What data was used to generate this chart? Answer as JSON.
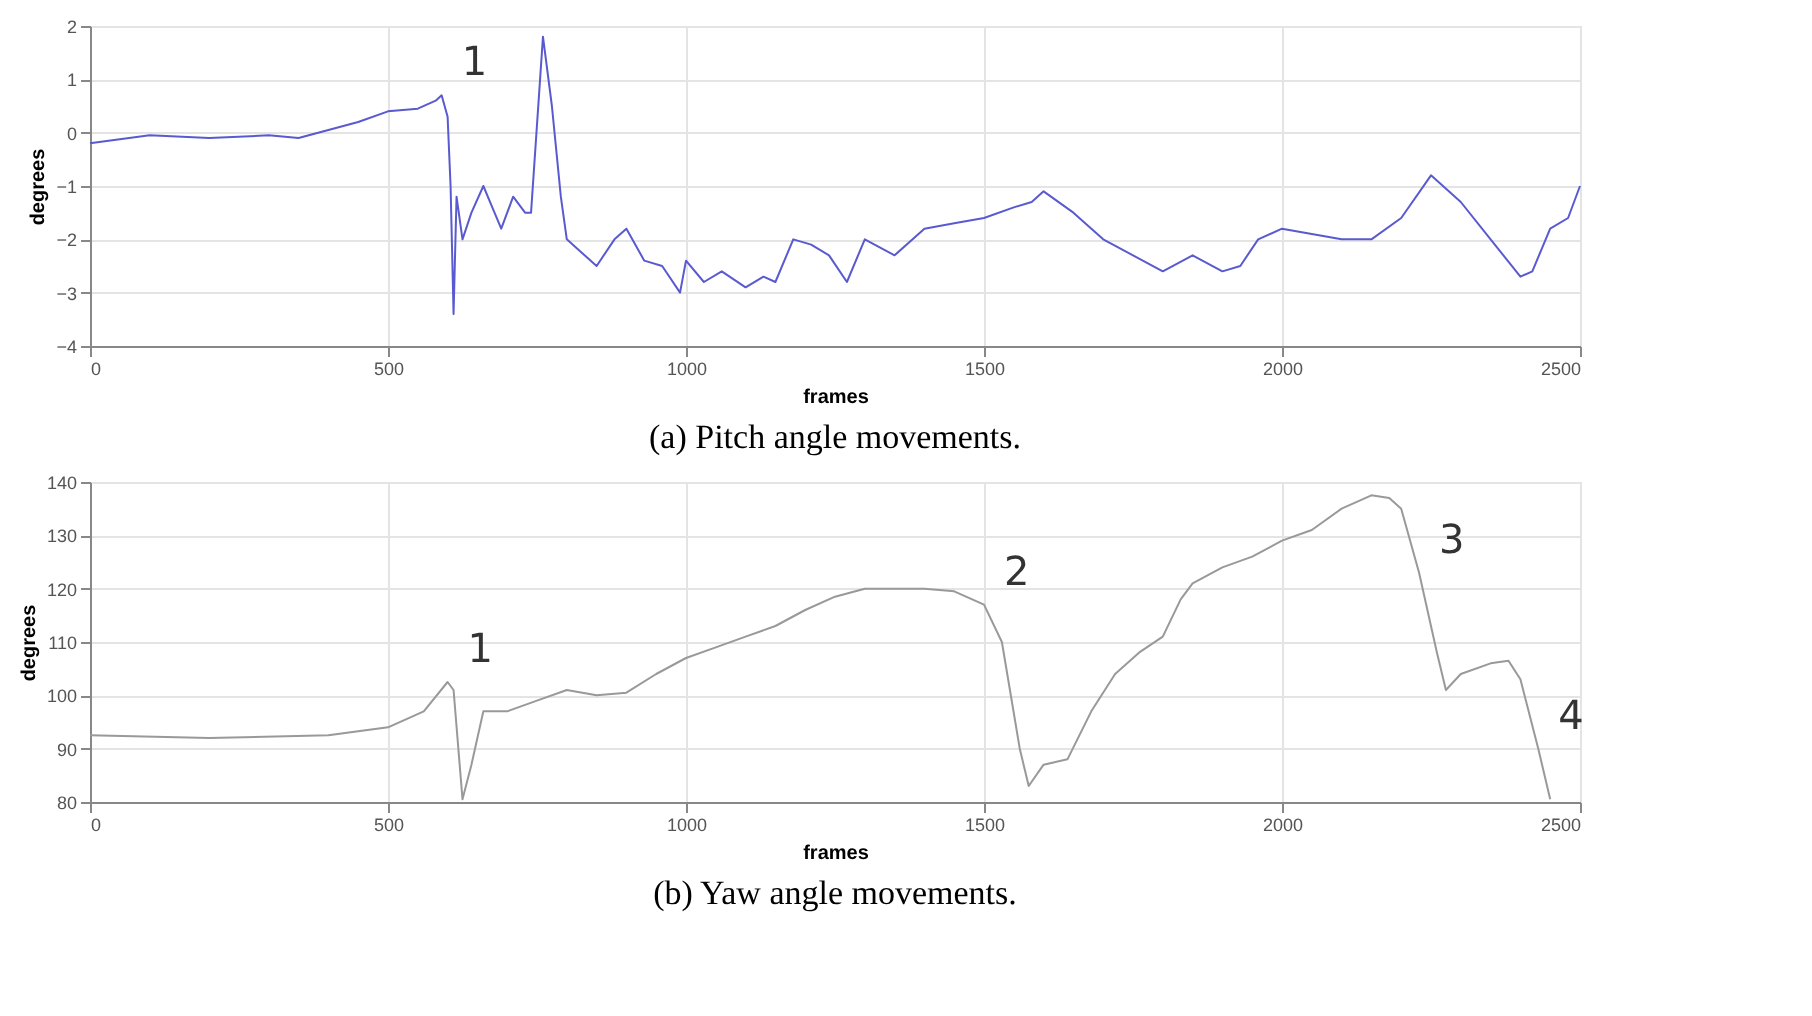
{
  "chart_data": [
    {
      "type": "line",
      "title": "(a) Pitch angle movements.",
      "xlabel": "frames",
      "ylabel": "degrees",
      "xlim": [
        0,
        2500
      ],
      "xticks": [
        0,
        500,
        1000,
        1500,
        2000,
        2500
      ],
      "ylim": [
        -4,
        2
      ],
      "yticks": [
        -4,
        -3,
        -2,
        -1,
        0,
        1,
        2
      ],
      "grid": true,
      "x": [
        0,
        100,
        200,
        300,
        350,
        400,
        450,
        500,
        550,
        580,
        590,
        600,
        605,
        610,
        615,
        625,
        640,
        660,
        675,
        690,
        710,
        730,
        740,
        760,
        775,
        790,
        800,
        820,
        850,
        880,
        900,
        930,
        960,
        990,
        1000,
        1030,
        1060,
        1100,
        1130,
        1150,
        1180,
        1210,
        1240,
        1270,
        1300,
        1350,
        1400,
        1450,
        1500,
        1550,
        1580,
        1600,
        1650,
        1700,
        1750,
        1800,
        1850,
        1900,
        1930,
        1960,
        2000,
        2050,
        2100,
        2150,
        2200,
        2250,
        2300,
        2350,
        2400,
        2420,
        2450,
        2480,
        2500
      ],
      "series": [
        {
          "color": "#5a5ad0",
          "values": [
            -0.2,
            -0.05,
            -0.1,
            -0.05,
            -0.1,
            0.05,
            0.2,
            0.4,
            0.45,
            0.6,
            0.7,
            0.3,
            -1,
            -3.4,
            -1.2,
            -2.0,
            -1.5,
            -1.0,
            -1.4,
            -1.8,
            -1.2,
            -1.5,
            -1.5,
            1.8,
            0.5,
            -1.2,
            -2.0,
            -2.2,
            -2.5,
            -2.0,
            -1.8,
            -2.4,
            -2.5,
            -3.0,
            -2.4,
            -2.8,
            -2.6,
            -2.9,
            -2.7,
            -2.8,
            -2.0,
            -2.1,
            -2.3,
            -2.8,
            -2.0,
            -2.3,
            -1.8,
            -1.7,
            -1.6,
            -1.4,
            -1.3,
            -1.1,
            -1.5,
            -2.0,
            -2.3,
            -2.6,
            -2.3,
            -2.6,
            -2.5,
            -2.0,
            -1.8,
            -1.9,
            -2.0,
            -2.0,
            -1.6,
            -0.8,
            -1.3,
            -2.0,
            -2.7,
            -2.6,
            -1.8,
            -1.6,
            -1.0
          ]
        }
      ],
      "annotations": [
        {
          "text": "1",
          "x": 590,
          "y": 0.7
        }
      ]
    },
    {
      "type": "line",
      "title": "(b) Yaw angle movements.",
      "xlabel": "frames",
      "ylabel": "degrees",
      "xlim": [
        0,
        2500
      ],
      "xticks": [
        0,
        500,
        1000,
        1500,
        2000,
        2500
      ],
      "ylim": [
        80,
        140
      ],
      "yticks": [
        80,
        90,
        100,
        110,
        120,
        130,
        140
      ],
      "grid": true,
      "x": [
        0,
        200,
        400,
        500,
        560,
        600,
        610,
        625,
        640,
        660,
        700,
        750,
        800,
        850,
        900,
        950,
        1000,
        1050,
        1100,
        1150,
        1200,
        1250,
        1300,
        1350,
        1400,
        1450,
        1500,
        1530,
        1560,
        1575,
        1600,
        1640,
        1680,
        1720,
        1760,
        1800,
        1830,
        1850,
        1900,
        1950,
        2000,
        2050,
        2100,
        2150,
        2180,
        2200,
        2230,
        2260,
        2275,
        2300,
        2350,
        2380,
        2400,
        2430,
        2450
      ],
      "series": [
        {
          "color": "#999999",
          "values": [
            92.5,
            92,
            92.5,
            94,
            97,
            102.5,
            101,
            80.5,
            87,
            97,
            97,
            99,
            101,
            100,
            100.5,
            104,
            107,
            109,
            111,
            113,
            116,
            118.5,
            120,
            120,
            120,
            119.5,
            117,
            110,
            90,
            83,
            87,
            88,
            97,
            104,
            108,
            111,
            118,
            121,
            124,
            126,
            129,
            131,
            135,
            137.5,
            137,
            135,
            123,
            108,
            101,
            104,
            106,
            106.5,
            103,
            90,
            80.5
          ]
        }
      ],
      "annotations": [
        {
          "text": "1",
          "x": 600,
          "y": 102.5
        },
        {
          "text": "2",
          "x": 1500,
          "y": 117
        },
        {
          "text": "3",
          "x": 2230,
          "y": 123
        },
        {
          "text": "4",
          "x": 2430,
          "y": 90
        }
      ]
    }
  ]
}
